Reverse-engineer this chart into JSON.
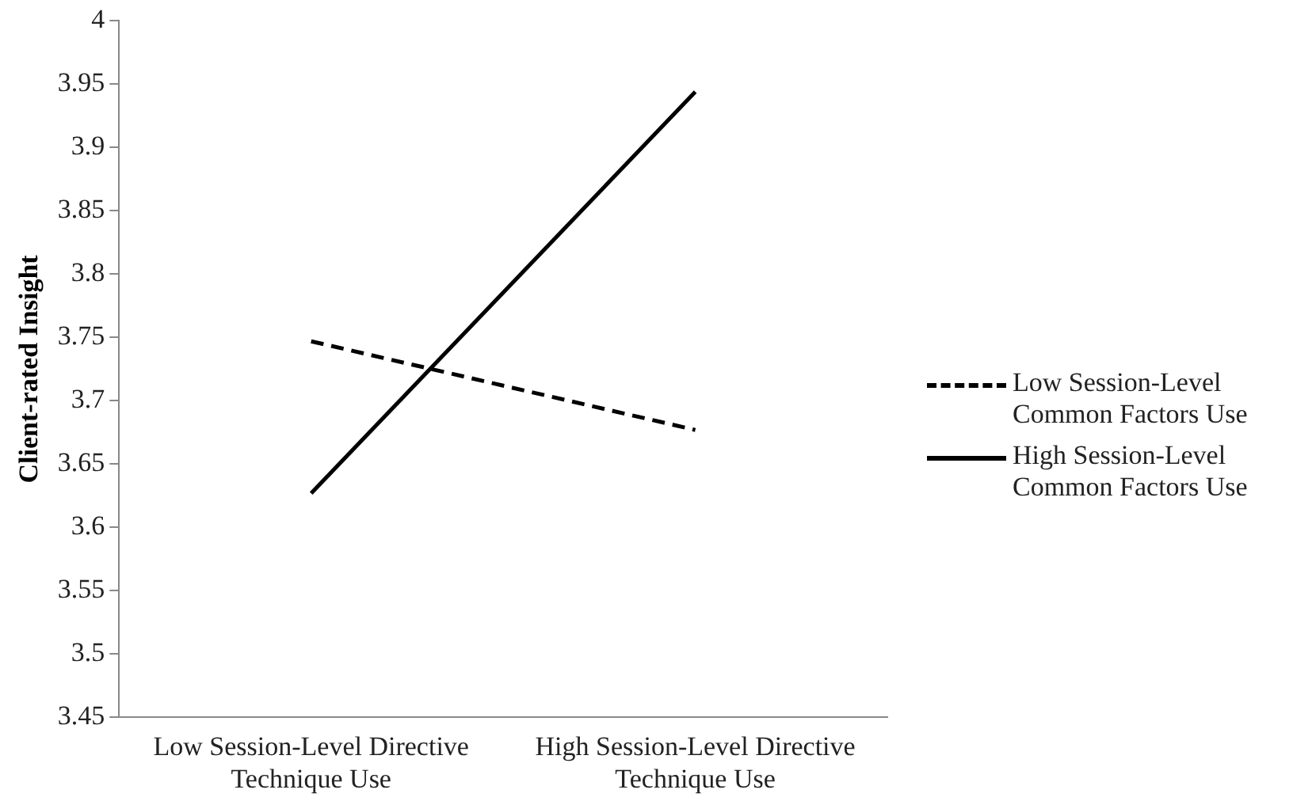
{
  "chart_data": {
    "type": "line",
    "ylabel": "Client-rated Insight",
    "categories": [
      "Low Session-Level Directive Technique Use",
      "High Session-Level Directive Technique Use"
    ],
    "series": [
      {
        "name": "Low Session-Level Common Factors Use",
        "color": "#000000",
        "line_style": "dashed",
        "values": [
          3.747,
          3.677
        ]
      },
      {
        "name": "High Session-Level Common Factors Use",
        "color": "#000000",
        "line_style": "solid",
        "values": [
          3.627,
          3.944
        ]
      }
    ],
    "ylim": [
      3.45,
      4
    ],
    "yticks": [
      3.45,
      3.5,
      3.55,
      3.6,
      3.65,
      3.7,
      3.75,
      3.8,
      3.85,
      3.9,
      3.95,
      4
    ],
    "grid": false,
    "legend": "right",
    "marker": "none"
  }
}
